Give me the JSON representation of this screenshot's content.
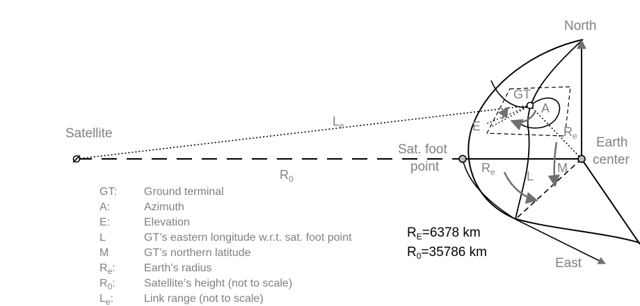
{
  "labels": {
    "north": "North",
    "east": "East",
    "satellite": "Satellite",
    "earth_center_line1": "Earth",
    "earth_center_line2": "center",
    "sat_foot_line1": "Sat. foot",
    "sat_foot_line2": "point",
    "gt": "GT",
    "a": "A",
    "e": "E",
    "l": "L",
    "m": "M",
    "re_base": "R",
    "re_sub": "e",
    "r0_base": "R",
    "r0_sub": "0",
    "le_base": "L",
    "le_sub": "e"
  },
  "legend": [
    {
      "sym_base": "GT:",
      "sym_sub": "",
      "sym_tail": "",
      "desc": "Ground terminal"
    },
    {
      "sym_base": "A:",
      "sym_sub": "",
      "sym_tail": "",
      "desc": "Azimuth"
    },
    {
      "sym_base": "E:",
      "sym_sub": "",
      "sym_tail": "",
      "desc": "Elevation"
    },
    {
      "sym_base": "L",
      "sym_sub": "",
      "sym_tail": "",
      "desc": "GT’s eastern longitude w.r.t. sat. foot point"
    },
    {
      "sym_base": "M",
      "sym_sub": "",
      "sym_tail": "",
      "desc": "GT’s northern latitude"
    },
    {
      "sym_base": "R",
      "sym_sub": "e",
      "sym_tail": ":",
      "desc": "Earth’s radius"
    },
    {
      "sym_base": "R",
      "sym_sub": "0",
      "sym_tail": ":",
      "desc": "Satellite’s height (not to scale)"
    },
    {
      "sym_base": "L",
      "sym_sub": "e",
      "sym_tail": ":",
      "desc": "Link range (not to scale)"
    }
  ],
  "constants": [
    {
      "base": "R",
      "sub": "E",
      "value": "=6378 km"
    },
    {
      "base": "R",
      "sub": "0",
      "value": "=35786 km"
    }
  ]
}
